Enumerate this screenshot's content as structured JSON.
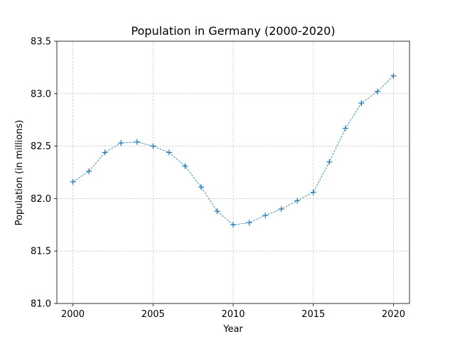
{
  "chart_data": {
    "type": "line",
    "title": "Population in Germany (2000-2020)",
    "xlabel": "Year",
    "ylabel": "Population (in millions)",
    "xlim": [
      1999,
      2021
    ],
    "ylim": [
      81.0,
      83.5
    ],
    "xticks": [
      2000,
      2005,
      2010,
      2015,
      2020
    ],
    "yticks": [
      81.0,
      81.5,
      82.0,
      82.5,
      83.0,
      83.5
    ],
    "ytick_labels": [
      "81.0",
      "81.5",
      "82.0",
      "82.5",
      "83.0",
      "83.5"
    ],
    "grid": true,
    "marker": "+",
    "line_style": "dashed",
    "color": "#1f77b4",
    "series": [
      {
        "name": "Population",
        "x": [
          2000,
          2001,
          2002,
          2003,
          2004,
          2005,
          2006,
          2007,
          2008,
          2009,
          2010,
          2011,
          2012,
          2013,
          2014,
          2015,
          2016,
          2017,
          2018,
          2019,
          2020
        ],
        "values": [
          82.16,
          82.26,
          82.44,
          82.53,
          82.54,
          82.5,
          82.44,
          82.31,
          82.11,
          81.88,
          81.75,
          81.77,
          81.84,
          81.9,
          81.98,
          82.06,
          82.35,
          82.67,
          82.91,
          83.02,
          83.17
        ]
      }
    ]
  }
}
